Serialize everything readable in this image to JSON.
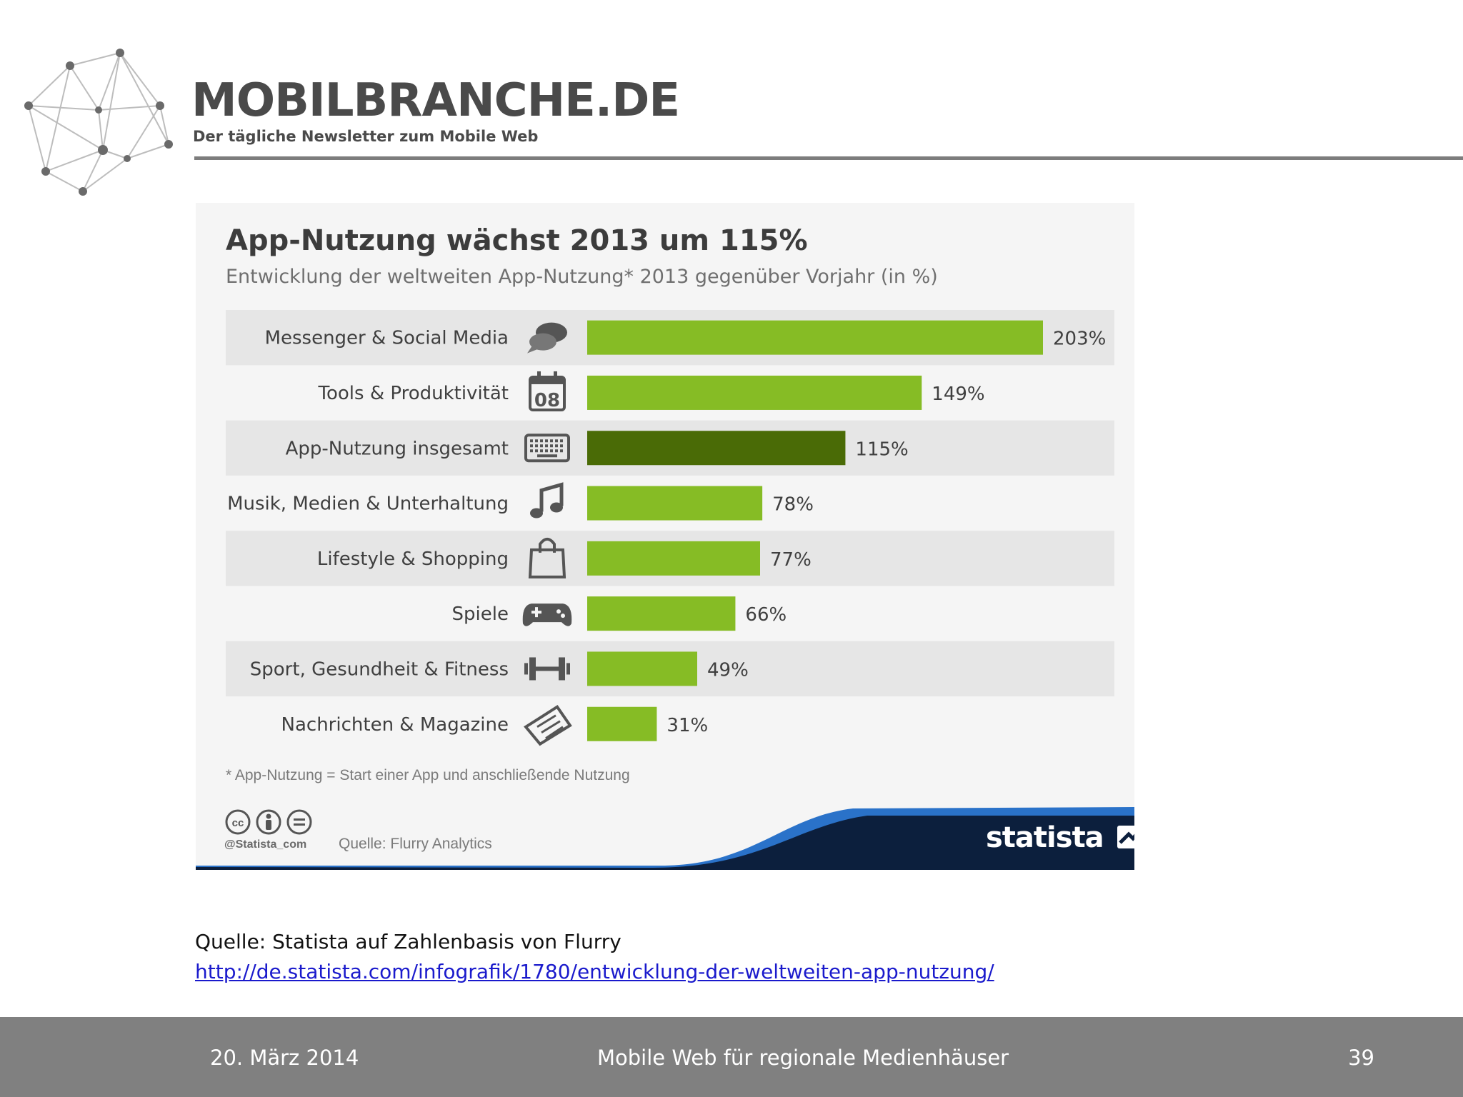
{
  "header": {
    "brand": "MOBILBRANCHE.DE",
    "tagline": "Der tägliche Newsletter zum Mobile Web",
    "logo_icon": "network-graph-icon"
  },
  "infographic": {
    "footnote": "* App-Nutzung = Start einer App und anschließende Nutzung",
    "handle": "@Statista_com",
    "source": "Quelle: Flurry Analytics",
    "brand": "statista",
    "license_icons": [
      "cc-icon",
      "by-icon",
      "nd-icon"
    ],
    "colors": {
      "bar": "#86bc25",
      "bar_highlight": "#4a6b06",
      "row_shade": "#e6e6e6",
      "brand_navy": "#0c1f3d",
      "brand_blue": "#2a72c9"
    }
  },
  "chart_data": {
    "type": "bar",
    "orientation": "horizontal",
    "title": "App-Nutzung wächst 2013 um 115%",
    "subtitle": "Entwicklung der weltweiten App-Nutzung* 2013 gegenüber Vorjahr (in %)",
    "categories": [
      "Messenger & Social Media",
      "Tools & Produktivität",
      "App-Nutzung insgesamt",
      "Musik, Medien & Unterhaltung",
      "Lifestyle & Shopping",
      "Spiele",
      "Sport, Gesundheit & Fitness",
      "Nachrichten & Magazine"
    ],
    "values": [
      203,
      149,
      115,
      78,
      77,
      66,
      49,
      31
    ],
    "value_labels": [
      "203%",
      "149%",
      "115%",
      "78%",
      "77%",
      "66%",
      "49%",
      "31%"
    ],
    "highlight_index": 2,
    "icons": [
      "chat-bubbles-icon",
      "calendar-icon",
      "keyboard-icon",
      "music-note-icon",
      "shopping-bag-icon",
      "gamepad-icon",
      "dumbbell-icon",
      "newspaper-icon"
    ],
    "calendar_day": "08",
    "xlim": [
      0,
      203
    ],
    "grid": false,
    "legend": "none"
  },
  "source": {
    "text": "Quelle: Statista auf Zahlenbasis von Flurry",
    "link": "http://de.statista.com/infografik/1780/entwicklung-der-weltweiten-app-nutzung/"
  },
  "footer": {
    "date": "20. März 2014",
    "title": "Mobile Web für regionale Medienhäuser",
    "page": "39"
  }
}
